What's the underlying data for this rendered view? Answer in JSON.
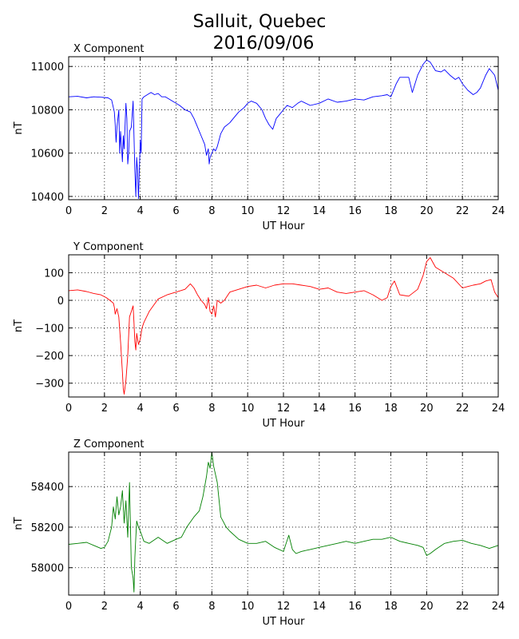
{
  "title_line1": "Salluit, Quebec",
  "title_line2": "2016/09/06",
  "chart_data": [
    {
      "type": "line",
      "title": "X Component",
      "xlabel": "UT Hour",
      "ylabel": "nT",
      "color": "#0000ff",
      "xlim": [
        0,
        24
      ],
      "ylim": [
        10385,
        11045
      ],
      "xticks": [
        0,
        2,
        4,
        6,
        8,
        10,
        12,
        14,
        16,
        18,
        20,
        22,
        24
      ],
      "yticks": [
        10400,
        10600,
        10800,
        11000
      ],
      "grid": true,
      "x": [
        0,
        0.5,
        1.0,
        1.4,
        1.8,
        2.2,
        2.4,
        2.55,
        2.6,
        2.65,
        2.7,
        2.8,
        2.85,
        2.9,
        3.0,
        3.05,
        3.1,
        3.2,
        3.25,
        3.3,
        3.35,
        3.4,
        3.5,
        3.6,
        3.7,
        3.75,
        3.8,
        3.85,
        3.9,
        4.0,
        4.05,
        4.1,
        4.2,
        4.4,
        4.6,
        4.8,
        5.0,
        5.2,
        5.4,
        5.6,
        5.8,
        6.0,
        6.2,
        6.5,
        6.8,
        7.0,
        7.2,
        7.4,
        7.6,
        7.7,
        7.8,
        7.85,
        7.9,
        8.0,
        8.1,
        8.2,
        8.3,
        8.5,
        8.7,
        9.0,
        9.2,
        9.5,
        9.8,
        10.0,
        10.2,
        10.5,
        10.8,
        11.0,
        11.2,
        11.4,
        11.6,
        11.8,
        12.0,
        12.2,
        12.5,
        12.8,
        13.0,
        13.5,
        14.0,
        14.5,
        15.0,
        15.5,
        16.0,
        16.5,
        17.0,
        17.5,
        17.8,
        18.0,
        18.1,
        18.3,
        18.5,
        19.0,
        19.2,
        19.5,
        19.8,
        20.0,
        20.2,
        20.5,
        20.8,
        21.0,
        21.3,
        21.6,
        21.8,
        22.0,
        22.3,
        22.6,
        22.8,
        23.0,
        23.3,
        23.5,
        23.8,
        24.0
      ],
      "y": [
        10860,
        10862,
        10855,
        10860,
        10858,
        10855,
        10845,
        10790,
        10730,
        10650,
        10720,
        10800,
        10600,
        10700,
        10560,
        10680,
        10620,
        10830,
        10760,
        10550,
        10600,
        10700,
        10720,
        10840,
        10520,
        10400,
        10580,
        10520,
        10390,
        10660,
        10600,
        10850,
        10860,
        10870,
        10880,
        10870,
        10875,
        10860,
        10860,
        10850,
        10840,
        10830,
        10820,
        10800,
        10790,
        10760,
        10720,
        10680,
        10640,
        10590,
        10620,
        10550,
        10580,
        10600,
        10620,
        10610,
        10630,
        10690,
        10720,
        10740,
        10760,
        10790,
        10810,
        10830,
        10840,
        10830,
        10800,
        10760,
        10730,
        10710,
        10760,
        10780,
        10800,
        10820,
        10810,
        10830,
        10840,
        10820,
        10830,
        10850,
        10835,
        10840,
        10850,
        10845,
        10860,
        10865,
        10870,
        10860,
        10880,
        10920,
        10950,
        10950,
        10880,
        10960,
        11010,
        11030,
        11020,
        10980,
        10975,
        10985,
        10960,
        10940,
        10950,
        10920,
        10890,
        10870,
        10880,
        10900,
        10960,
        10990,
        10960,
        10890
      ]
    },
    {
      "type": "line",
      "title": "Y Component",
      "xlabel": "UT Hour",
      "ylabel": "nT",
      "color": "#ff0000",
      "xlim": [
        0,
        24
      ],
      "ylim": [
        -350,
        165
      ],
      "xticks": [
        0,
        2,
        4,
        6,
        8,
        10,
        12,
        14,
        16,
        18,
        20,
        22,
        24
      ],
      "yticks": [
        -300,
        -200,
        -100,
        0,
        100
      ],
      "grid": true,
      "x": [
        0,
        0.5,
        1.0,
        1.4,
        1.8,
        2.1,
        2.3,
        2.5,
        2.55,
        2.6,
        2.7,
        2.8,
        2.9,
        3.0,
        3.05,
        3.1,
        3.2,
        3.3,
        3.4,
        3.5,
        3.6,
        3.65,
        3.7,
        3.75,
        3.8,
        3.9,
        4.0,
        4.1,
        4.2,
        4.5,
        5.0,
        5.5,
        6.0,
        6.5,
        6.8,
        7.0,
        7.2,
        7.4,
        7.6,
        7.7,
        7.8,
        7.9,
        8.0,
        8.1,
        8.2,
        8.3,
        8.5,
        8.7,
        9.0,
        9.5,
        10.0,
        10.5,
        11.0,
        11.5,
        12.0,
        12.5,
        13.0,
        13.5,
        14.0,
        14.5,
        15.0,
        15.5,
        16.0,
        16.5,
        17.0,
        17.5,
        17.8,
        18.0,
        18.2,
        18.5,
        19.0,
        19.5,
        19.8,
        20.0,
        20.2,
        20.5,
        21.0,
        21.5,
        22.0,
        22.3,
        22.6,
        23.0,
        23.3,
        23.6,
        23.8,
        24.0
      ],
      "y": [
        35,
        38,
        32,
        25,
        20,
        10,
        0,
        -10,
        -25,
        -50,
        -30,
        -60,
        -150,
        -260,
        -320,
        -340,
        -290,
        -200,
        -60,
        -40,
        -20,
        -80,
        -150,
        -180,
        -120,
        -160,
        -140,
        -100,
        -80,
        -40,
        5,
        20,
        30,
        40,
        60,
        45,
        20,
        0,
        -15,
        -30,
        10,
        -40,
        -50,
        -20,
        -60,
        0,
        -10,
        0,
        30,
        40,
        50,
        55,
        45,
        55,
        60,
        60,
        55,
        50,
        40,
        45,
        30,
        25,
        30,
        35,
        20,
        0,
        10,
        50,
        70,
        20,
        15,
        40,
        90,
        140,
        155,
        120,
        100,
        80,
        45,
        50,
        55,
        60,
        70,
        75,
        30,
        10
      ]
    },
    {
      "type": "line",
      "title": "Z Component",
      "xlabel": "UT Hour",
      "ylabel": "nT",
      "color": "#008000",
      "xlim": [
        0,
        24
      ],
      "ylim": [
        57865,
        58570
      ],
      "xticks": [
        0,
        2,
        4,
        6,
        8,
        10,
        12,
        14,
        16,
        18,
        20,
        22,
        24
      ],
      "yticks": [
        58000,
        58200,
        58400
      ],
      "grid": true,
      "x": [
        0,
        0.5,
        1.0,
        1.4,
        1.8,
        2.0,
        2.2,
        2.4,
        2.5,
        2.6,
        2.7,
        2.8,
        2.9,
        3.0,
        3.1,
        3.2,
        3.3,
        3.4,
        3.5,
        3.6,
        3.65,
        3.7,
        3.75,
        3.8,
        3.9,
        4.0,
        4.2,
        4.5,
        5.0,
        5.5,
        6.0,
        6.3,
        6.6,
        7.0,
        7.3,
        7.5,
        7.7,
        7.8,
        7.9,
        8.0,
        8.1,
        8.3,
        8.5,
        8.8,
        9.0,
        9.5,
        10.0,
        10.5,
        11.0,
        11.5,
        12.0,
        12.3,
        12.5,
        12.7,
        13.0,
        13.5,
        14.0,
        14.5,
        15.0,
        15.5,
        16.0,
        16.5,
        17.0,
        17.5,
        18.0,
        18.5,
        19.0,
        19.5,
        19.8,
        20.0,
        20.2,
        20.5,
        21.0,
        21.5,
        22.0,
        22.5,
        23.0,
        23.5,
        24.0
      ],
      "y": [
        58115,
        58120,
        58125,
        58110,
        58095,
        58100,
        58130,
        58200,
        58300,
        58240,
        58350,
        58260,
        58300,
        58380,
        58220,
        58330,
        58150,
        58420,
        58000,
        57950,
        57880,
        58050,
        58150,
        58230,
        58200,
        58180,
        58130,
        58120,
        58150,
        58120,
        58140,
        58150,
        58200,
        58250,
        58280,
        58350,
        58450,
        58520,
        58490,
        58570,
        58500,
        58420,
        58250,
        58200,
        58180,
        58140,
        58120,
        58120,
        58130,
        58100,
        58080,
        58160,
        58090,
        58070,
        58080,
        58090,
        58100,
        58110,
        58120,
        58130,
        58120,
        58130,
        58140,
        58140,
        58150,
        58130,
        58120,
        58110,
        58100,
        58060,
        58070,
        58090,
        58120,
        58130,
        58135,
        58120,
        58110,
        58095,
        58110
      ]
    }
  ]
}
